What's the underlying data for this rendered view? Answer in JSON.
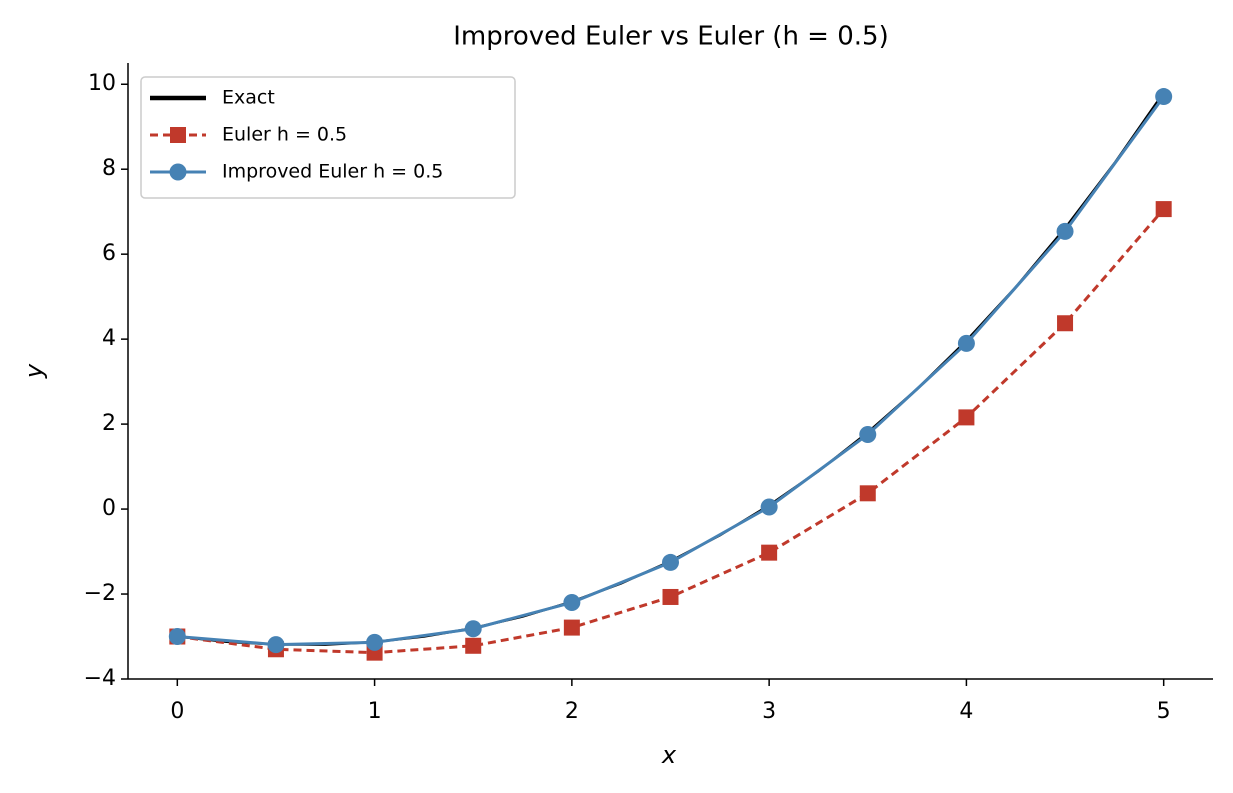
{
  "chart_data": {
    "type": "line",
    "title": "Improved Euler vs Euler (h = 0.5)",
    "xlabel": "x",
    "ylabel": "y",
    "xlim": [
      -0.25,
      5.25
    ],
    "ylim": [
      -4,
      10.5
    ],
    "xticks": [
      0,
      1,
      2,
      3,
      4,
      5
    ],
    "yticks": [
      {
        "value": -4,
        "label": "−4"
      },
      {
        "value": -2,
        "label": "−2"
      },
      0,
      2,
      4,
      6,
      8,
      10
    ],
    "legend": "upper left",
    "series": [
      {
        "name": "Exact",
        "color": "#000000",
        "style": "solid",
        "marker": "none",
        "x": [
          0,
          0.25,
          0.5,
          0.75,
          1,
          1.25,
          1.5,
          1.75,
          2,
          2.25,
          2.5,
          2.75,
          3,
          3.25,
          3.5,
          3.75,
          4,
          4.25,
          4.5,
          4.75,
          5
        ],
        "values": [
          -3,
          -3.122,
          -3.186,
          -3.19,
          -3.129,
          -3.001,
          -2.803,
          -2.531,
          -2.18,
          -1.747,
          -1.228,
          -0.618,
          0.087,
          0.892,
          1.803,
          2.824,
          3.962,
          5.222,
          6.611,
          8.136,
          9.801
        ]
      },
      {
        "name": "Euler h = 0.5",
        "color": "#c0392b",
        "style": "dashed",
        "marker": "square",
        "x": [
          0,
          0.5,
          1,
          1.5,
          2,
          2.5,
          3,
          3.5,
          4,
          4.5,
          5
        ],
        "values": [
          -3,
          -3.3,
          -3.38,
          -3.218,
          -2.79,
          -2.069,
          -1.026,
          0.371,
          2.158,
          4.374,
          7.061
        ]
      },
      {
        "name": "Improved Euler h = 0.5",
        "color": "#4682b4",
        "style": "solid",
        "marker": "circle",
        "x": [
          0,
          0.5,
          1,
          1.5,
          2,
          2.5,
          3,
          3.5,
          4,
          4.5,
          5
        ],
        "values": [
          -3,
          -3.19,
          -3.138,
          -2.817,
          -2.2,
          -1.256,
          0.049,
          1.755,
          3.901,
          6.536,
          9.71
        ]
      }
    ]
  }
}
